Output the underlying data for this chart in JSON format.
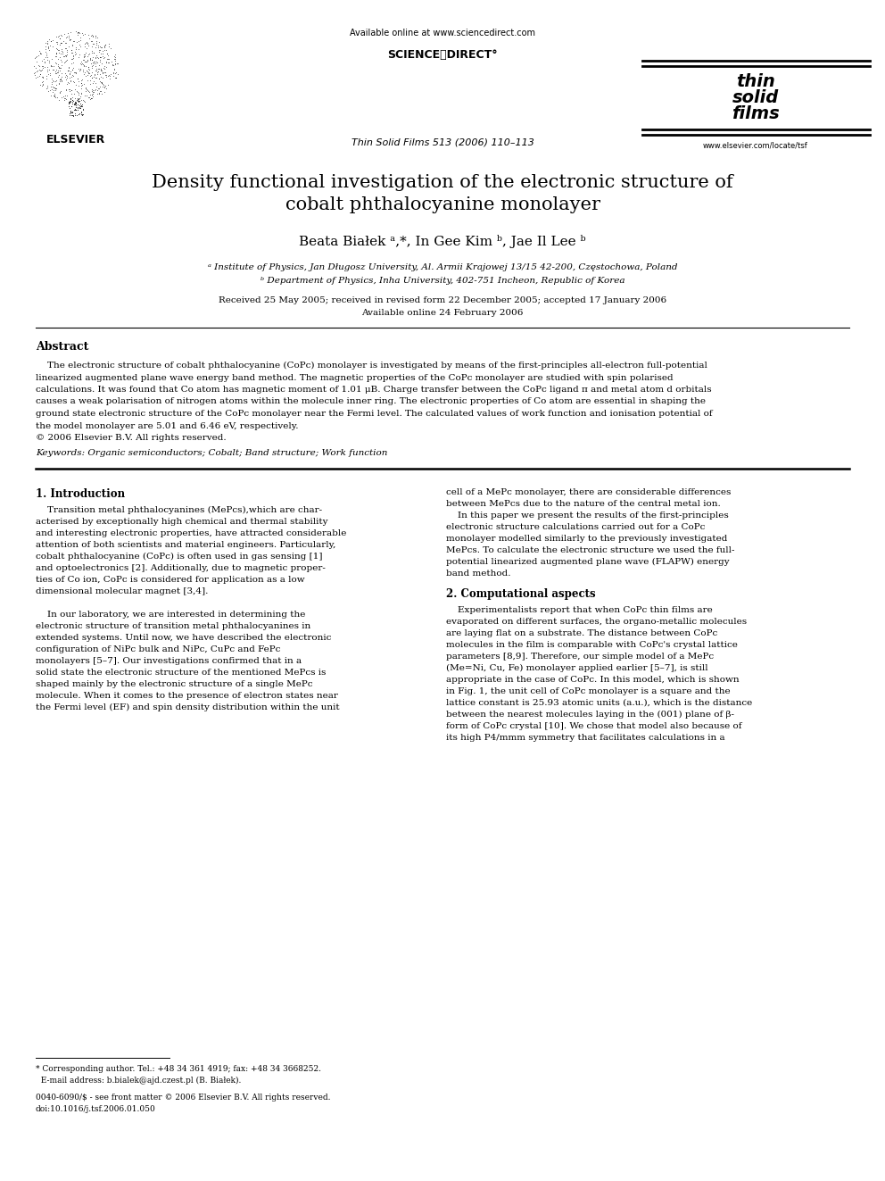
{
  "background_color": "#ffffff",
  "title_line1": "Density functional investigation of the electronic structure of",
  "title_line2": "cobalt phthalocyanine monolayer",
  "authors": "Beata Białek ᵃ,*, In Gee Kim ᵇ, Jae Il Lee ᵇ",
  "affil_a": "ᵃ Institute of Physics, Jan Długosz University, Al. Armii Krajowej 13/15 42-200, Częstochowa, Poland",
  "affil_b": "ᵇ Department of Physics, Inha University, 402-751 Incheon, Republic of Korea",
  "received": "Received 25 May 2005; received in revised form 22 December 2005; accepted 17 January 2006",
  "available": "Available online 24 February 2006",
  "journal": "Thin Solid Films 513 (2006) 110–113",
  "url_top": "Available online at www.sciencedirect.com",
  "url_bottom": "www.elsevier.com/locate/tsf",
  "abstract_title": "Abstract",
  "keywords": "Keywords: Organic semiconductors; Cobalt; Band structure; Work function",
  "section1_title": "1. Introduction",
  "section2_title": "2. Computational aspects",
  "footer_note1": "* Corresponding author. Tel.: +48 34 361 4919; fax: +48 34 3668252.",
  "footer_note2": "  E-mail address: b.bialek@ajd.czest.pl (B. Białek).",
  "footer_note3": "0040-6090/$ - see front matter © 2006 Elsevier B.V. All rights reserved.",
  "footer_note4": "doi:10.1016/j.tsf.2006.01.050",
  "abstract_lines": [
    "    The electronic structure of cobalt phthalocyanine (CoPc) monolayer is investigated by means of the first-principles all-electron full-potential",
    "linearized augmented plane wave energy band method. The magnetic properties of the CoPc monolayer are studied with spin polarised",
    "calculations. It was found that Co atom has magnetic moment of 1.01 μB. Charge transfer between the CoPc ligand π and metal atom d orbitals",
    "causes a weak polarisation of nitrogen atoms within the molecule inner ring. The electronic properties of Co atom are essential in shaping the",
    "ground state electronic structure of the CoPc monolayer near the Fermi level. The calculated values of work function and ionisation potential of",
    "the model monolayer are 5.01 and 6.46 eV, respectively.",
    "© 2006 Elsevier B.V. All rights reserved."
  ],
  "intro_left_lines": [
    "    Transition metal phthalocyanines (MePcs),which are char-",
    "acterised by exceptionally high chemical and thermal stability",
    "and interesting electronic properties, have attracted considerable",
    "attention of both scientists and material engineers. Particularly,",
    "cobalt phthalocyanine (CoPc) is often used in gas sensing [1]",
    "and optoelectronics [2]. Additionally, due to magnetic proper-",
    "ties of Co ion, CoPc is considered for application as a low",
    "dimensional molecular magnet [3,4].",
    "",
    "    In our laboratory, we are interested in determining the",
    "electronic structure of transition metal phthalocyanines in",
    "extended systems. Until now, we have described the electronic",
    "configuration of NiPc bulk and NiPc, CuPc and FePc",
    "monolayers [5–7]. Our investigations confirmed that in a",
    "solid state the electronic structure of the mentioned MePcs is",
    "shaped mainly by the electronic structure of a single MePc",
    "molecule. When it comes to the presence of electron states near",
    "the Fermi level (EF) and spin density distribution within the unit"
  ],
  "intro_right_lines": [
    "cell of a MePc monolayer, there are considerable differences",
    "between MePcs due to the nature of the central metal ion.",
    "    In this paper we present the results of the first-principles",
    "electronic structure calculations carried out for a CoPc",
    "monolayer modelled similarly to the previously investigated",
    "MePcs. To calculate the electronic structure we used the full-",
    "potential linearized augmented plane wave (FLAPW) energy",
    "band method."
  ],
  "section2_right_lines": [
    "    Experimentalists report that when CoPc thin films are",
    "evaporated on different surfaces, the organo-metallic molecules",
    "are laying flat on a substrate. The distance between CoPc",
    "molecules in the film is comparable with CoPc's crystal lattice",
    "parameters [8,9]. Therefore, our simple model of a MePc",
    "(Me=Ni, Cu, Fe) monolayer applied earlier [5–7], is still",
    "appropriate in the case of CoPc. In this model, which is shown",
    "in Fig. 1, the unit cell of CoPc monolayer is a square and the",
    "lattice constant is 25.93 atomic units (a.u.), which is the distance",
    "between the nearest molecules laying in the (001) plane of β-",
    "form of CoPc crystal [10]. We chose that model also because of",
    "its high P4/mmm symmetry that facilitates calculations in a"
  ]
}
